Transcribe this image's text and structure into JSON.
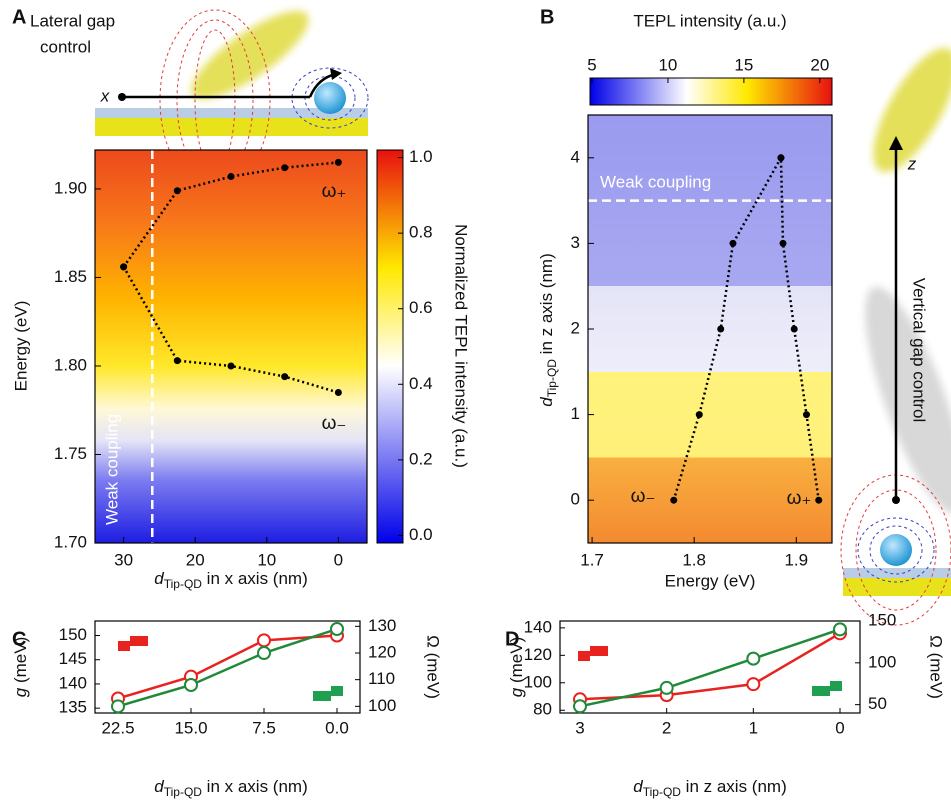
{
  "chart_data": [
    {
      "type": "heatmap",
      "panel": "A",
      "diagram_label": [
        "Lateral gap",
        "control"
      ],
      "axis_symbol": "x",
      "xlabel": {
        "symbol": "d",
        "subscript": "Tip-QD",
        "text": " in x axis (nm)"
      },
      "ylabel": "Energy (eV)",
      "xlim": [
        34,
        -4
      ],
      "xticks": [
        30,
        20,
        10,
        0
      ],
      "ylim": [
        1.7,
        1.922
      ],
      "yticks": [
        {
          "value": 1.7,
          "label": "1.70"
        },
        {
          "value": 1.75,
          "label": "1.75"
        },
        {
          "value": 1.8,
          "label": "1.80"
        },
        {
          "value": 1.85,
          "label": "1.85"
        },
        {
          "value": 1.9,
          "label": "1.90"
        }
      ],
      "series": [
        {
          "name": "ω₊",
          "x": [
            30,
            22.5,
            15,
            7.5,
            0
          ],
          "values": [
            1.856,
            1.899,
            1.907,
            1.912,
            1.915
          ]
        },
        {
          "name": "ω₋",
          "x": [
            30,
            22.5,
            15,
            7.5,
            0
          ],
          "values": [
            1.856,
            1.803,
            1.8,
            1.794,
            1.785
          ]
        }
      ],
      "weak_coupling": {
        "label": "Weak coupling",
        "x": 26
      },
      "colorbar": {
        "label": "Normalized TEPL intensity (a.u.)",
        "lim": [
          -0.02,
          1.02
        ],
        "ticks": [
          {
            "value": 0,
            "label": "0.0"
          },
          {
            "value": 0.2,
            "label": "0.2"
          },
          {
            "value": 0.4,
            "label": "0.4"
          },
          {
            "value": 0.6,
            "label": "0.6"
          },
          {
            "value": 0.8,
            "label": "0.8"
          },
          {
            "value": 1,
            "label": "1.0"
          }
        ]
      }
    },
    {
      "type": "heatmap",
      "panel": "B",
      "diagram_label": [
        "Vertical gap control"
      ],
      "axis_symbol": "z",
      "xlabel": "Energy (eV)",
      "ylabel": {
        "symbol": "d",
        "subscript": "Tip-QD",
        "text": " in z axis (nm)"
      },
      "xlim": [
        1.696,
        1.935
      ],
      "xticks": [
        1.7,
        1.8,
        1.9
      ],
      "ylim": [
        -0.5,
        4.5
      ],
      "yticks": [
        0,
        1,
        2,
        3,
        4
      ],
      "series": [
        {
          "name": "ω₋",
          "x": [
            1.78,
            1.805,
            1.826,
            1.838,
            1.885
          ],
          "values": [
            0,
            1,
            2,
            3,
            4
          ]
        },
        {
          "name": "ω₊",
          "x": [
            1.922,
            1.91,
            1.898,
            1.887,
            1.885
          ],
          "values": [
            0,
            1,
            2,
            3,
            4
          ]
        }
      ],
      "weak_coupling": {
        "label": "Weak coupling",
        "y": 3.5
      },
      "colorbar": {
        "label": "TEPL intensity (a.u.)",
        "lim": [
          4.87,
          20.8
        ],
        "ticks": [
          5,
          10,
          15,
          20
        ]
      }
    },
    {
      "type": "line",
      "panel": "C",
      "xlabel": {
        "symbol": "d",
        "subscript": "Tip-QD",
        "text": " in x axis (nm)"
      },
      "ylabel": {
        "symbol": "g",
        "text": " (meV)"
      },
      "y2label": "Ω (meV)",
      "categories": [
        "22.5",
        "15.0",
        "7.5",
        "0.0"
      ],
      "ylim": [
        134,
        153
      ],
      "yticks": [
        135,
        140,
        145,
        150
      ],
      "y2lim": [
        97.5,
        132
      ],
      "y2ticks": [
        100,
        110,
        120,
        130
      ],
      "series": [
        {
          "name": "g",
          "color": "#e8231f",
          "values": [
            137,
            141.5,
            149,
            150
          ]
        },
        {
          "name": "Ω",
          "color": "#1f8a3a",
          "axis": "y2",
          "values": [
            100,
            108,
            120,
            129
          ]
        }
      ]
    },
    {
      "type": "line",
      "panel": "D",
      "xlabel": {
        "symbol": "d",
        "subscript": "Tip-QD",
        "text": " in z axis (nm)"
      },
      "ylabel": {
        "symbol": "g",
        "text": " (meV)"
      },
      "y2label": "Ω (meV)",
      "categories": [
        "3",
        "2",
        "1",
        "0"
      ],
      "ylim": [
        78,
        145
      ],
      "yticks": [
        80,
        100,
        120,
        140
      ],
      "y2lim": [
        40,
        150
      ],
      "y2ticks": [
        50,
        100,
        150
      ],
      "series": [
        {
          "name": "g",
          "color": "#e8231f",
          "values": [
            88,
            91,
            99,
            136
          ]
        },
        {
          "name": "Ω",
          "color": "#1f8a3a",
          "axis": "y2",
          "values": [
            48,
            70,
            105,
            140
          ]
        }
      ]
    }
  ]
}
